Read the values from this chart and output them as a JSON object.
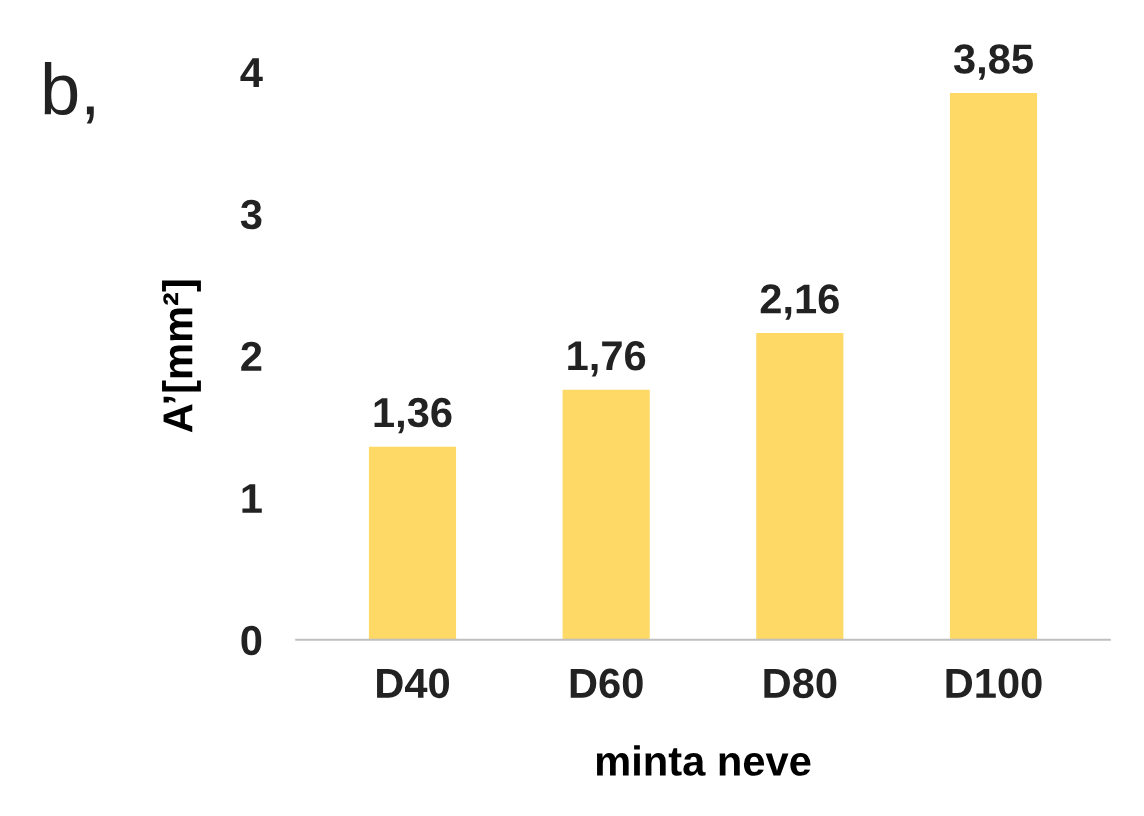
{
  "chart_data": {
    "type": "bar",
    "xlabel": "minta neve",
    "ylabel": "A’[mm²]",
    "annotations": [
      "b,"
    ],
    "categories": [
      "D40",
      "D60",
      "D80",
      "D100"
    ],
    "values": [
      1.36,
      1.76,
      2.16,
      3.85
    ],
    "value_labels": [
      "1,36",
      "1,76",
      "2,16",
      "3,85"
    ],
    "color": "#ffd966",
    "ylim": [
      0,
      4
    ],
    "yticks": [
      0,
      1,
      2,
      3,
      4
    ],
    "grid": false,
    "legend": false
  }
}
